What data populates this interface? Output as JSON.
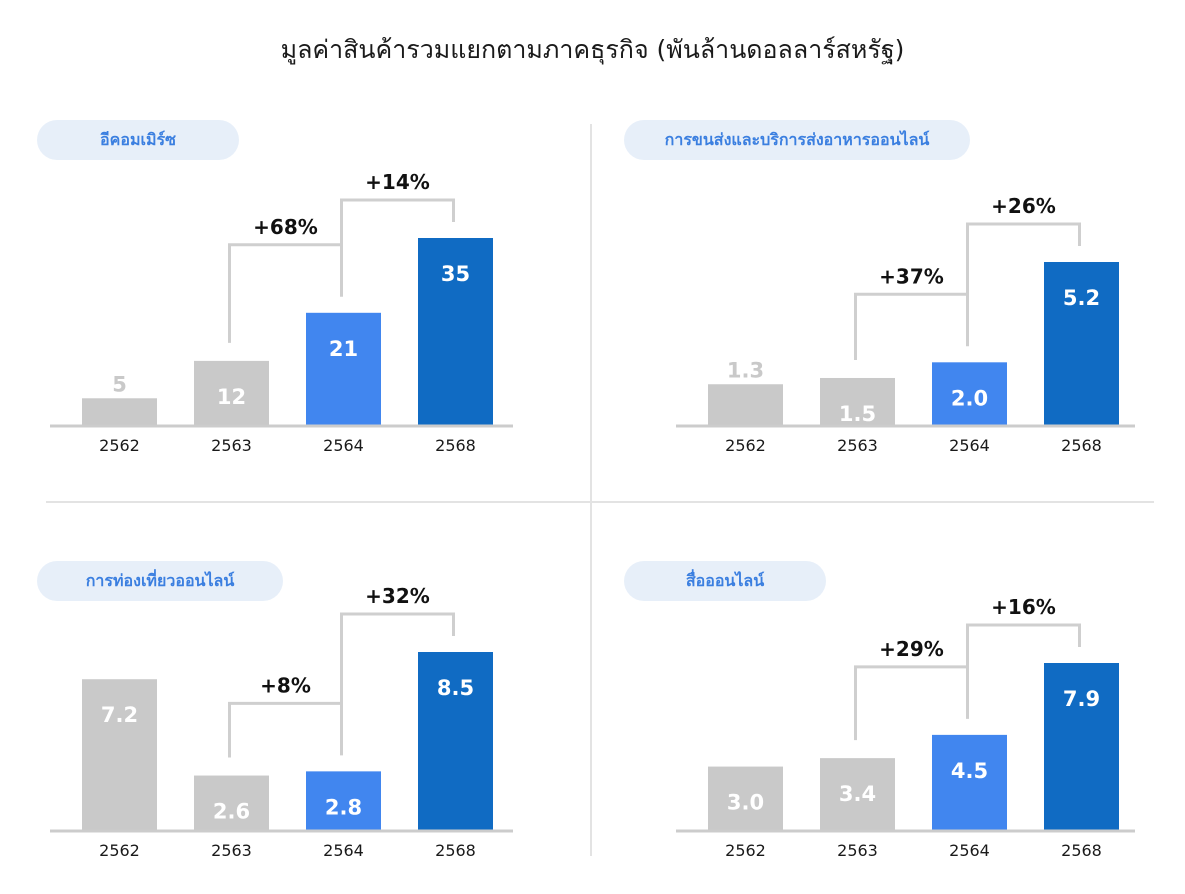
{
  "title": "มูลค่าสินค้ารวมแยกตามภาคธุรกิจ (พันล้านดอลลาร์สหรัฐ)",
  "colors": {
    "bar_gray": "#c9c9c9",
    "bar_blue": "#4186ef",
    "bar_dark_blue": "#106bc3",
    "bracket": "#cfcfcf",
    "axis": "#cccccc",
    "pill_bg": "#e7eff9",
    "pill_text": "#3b7fe0"
  },
  "chart_data": [
    {
      "type": "bar",
      "title": "อีคอมเมิร์ซ",
      "categories": [
        "2562",
        "2563",
        "2564",
        "2568"
      ],
      "values": [
        5,
        12,
        21,
        35
      ],
      "value_labels": [
        "5",
        "12",
        "21",
        "35"
      ],
      "bar_colors": [
        "gray",
        "gray",
        "blue",
        "dark_blue"
      ],
      "growth": [
        {
          "from": "2563",
          "to": "2564",
          "label": "+68%"
        },
        {
          "from": "2564",
          "to": "2568",
          "label": "+14%"
        }
      ]
    },
    {
      "type": "bar",
      "title": "การขนส่งและบริการส่งอาหารออนไลน์",
      "categories": [
        "2562",
        "2563",
        "2564",
        "2568"
      ],
      "values": [
        1.3,
        1.5,
        2.0,
        5.2
      ],
      "value_labels": [
        "1.3",
        "1.5",
        "2.0",
        "5.2"
      ],
      "bar_colors": [
        "gray",
        "gray",
        "blue",
        "dark_blue"
      ],
      "growth": [
        {
          "from": "2563",
          "to": "2564",
          "label": "+37%"
        },
        {
          "from": "2564",
          "to": "2568",
          "label": "+26%"
        }
      ]
    },
    {
      "type": "bar",
      "title": "การท่องเที่ยวออนไลน์",
      "categories": [
        "2562",
        "2563",
        "2564",
        "2568"
      ],
      "values": [
        7.2,
        2.6,
        2.8,
        8.5
      ],
      "value_labels": [
        "7.2",
        "2.6",
        "2.8",
        "8.5"
      ],
      "bar_colors": [
        "gray",
        "gray",
        "blue",
        "dark_blue"
      ],
      "growth": [
        {
          "from": "2563",
          "to": "2564",
          "label": "+8%"
        },
        {
          "from": "2564",
          "to": "2568",
          "label": "+32%"
        }
      ]
    },
    {
      "type": "bar",
      "title": "สื่อออนไลน์",
      "categories": [
        "2562",
        "2563",
        "2564",
        "2568"
      ],
      "values": [
        3.0,
        3.4,
        4.5,
        7.9
      ],
      "value_labels": [
        "3.0",
        "3.4",
        "4.5",
        "7.9"
      ],
      "bar_colors": [
        "gray",
        "gray",
        "blue",
        "dark_blue"
      ],
      "growth": [
        {
          "from": "2563",
          "to": "2564",
          "label": "+29%"
        },
        {
          "from": "2564",
          "to": "2568",
          "label": "+16%"
        }
      ]
    }
  ]
}
